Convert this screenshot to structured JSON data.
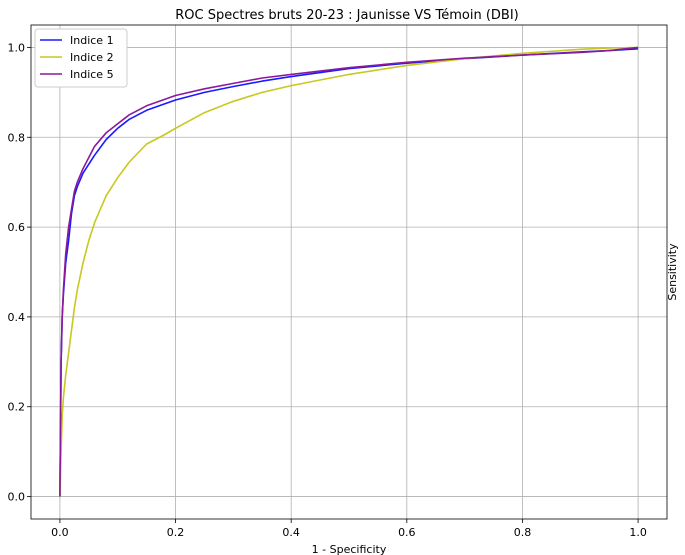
{
  "chart_data": {
    "type": "line",
    "title": "ROC Spectres bruts 20-23 : Jaunisse VS Témoin (DBI)",
    "xlabel": "1 - Specificity",
    "ylabel": "Sensitivity",
    "xlim": [
      -0.05,
      1.05
    ],
    "ylim": [
      -0.05,
      1.05
    ],
    "xticks": [
      "0.0",
      "0.2",
      "0.4",
      "0.6",
      "0.8",
      "1.0"
    ],
    "yticks": [
      "0.0",
      "0.2",
      "0.4",
      "0.6",
      "0.8",
      "1.0"
    ],
    "grid": true,
    "legend_position": "upper-left",
    "series": [
      {
        "name": "Indice 1",
        "color": "#1a1aff",
        "x": [
          0,
          0.002,
          0.004,
          0.006,
          0.01,
          0.015,
          0.02,
          0.025,
          0.03,
          0.04,
          0.05,
          0.06,
          0.08,
          0.1,
          0.12,
          0.15,
          0.2,
          0.25,
          0.3,
          0.35,
          0.4,
          0.5,
          0.6,
          0.7,
          0.8,
          0.9,
          0.95,
          1.0
        ],
        "y": [
          0,
          0.3,
          0.4,
          0.45,
          0.52,
          0.57,
          0.63,
          0.67,
          0.69,
          0.72,
          0.74,
          0.76,
          0.795,
          0.82,
          0.84,
          0.86,
          0.883,
          0.9,
          0.913,
          0.925,
          0.935,
          0.953,
          0.965,
          0.975,
          0.983,
          0.99,
          0.993,
          0.997
        ]
      },
      {
        "name": "Indice 2",
        "color": "#c8c81e",
        "x": [
          0,
          0.002,
          0.004,
          0.006,
          0.01,
          0.015,
          0.02,
          0.025,
          0.03,
          0.04,
          0.05,
          0.06,
          0.08,
          0.1,
          0.12,
          0.15,
          0.18,
          0.2,
          0.25,
          0.3,
          0.35,
          0.4,
          0.5,
          0.6,
          0.7,
          0.8,
          0.9,
          0.95,
          1.0
        ],
        "y": [
          0,
          0.1,
          0.18,
          0.22,
          0.27,
          0.32,
          0.37,
          0.42,
          0.46,
          0.52,
          0.57,
          0.61,
          0.67,
          0.71,
          0.745,
          0.785,
          0.805,
          0.82,
          0.855,
          0.88,
          0.9,
          0.915,
          0.94,
          0.96,
          0.975,
          0.987,
          0.996,
          0.999,
          1.0
        ]
      },
      {
        "name": "Indice 5",
        "color": "#8b1a9a",
        "x": [
          0,
          0.002,
          0.004,
          0.006,
          0.01,
          0.015,
          0.02,
          0.025,
          0.03,
          0.04,
          0.05,
          0.06,
          0.08,
          0.1,
          0.12,
          0.15,
          0.2,
          0.25,
          0.3,
          0.35,
          0.4,
          0.5,
          0.6,
          0.7,
          0.8,
          0.9,
          0.95,
          1.0
        ],
        "y": [
          0,
          0.3,
          0.4,
          0.46,
          0.54,
          0.6,
          0.64,
          0.68,
          0.7,
          0.73,
          0.755,
          0.78,
          0.81,
          0.83,
          0.85,
          0.87,
          0.893,
          0.908,
          0.92,
          0.932,
          0.94,
          0.955,
          0.967,
          0.976,
          0.983,
          0.989,
          0.993,
          1.0
        ]
      }
    ]
  }
}
